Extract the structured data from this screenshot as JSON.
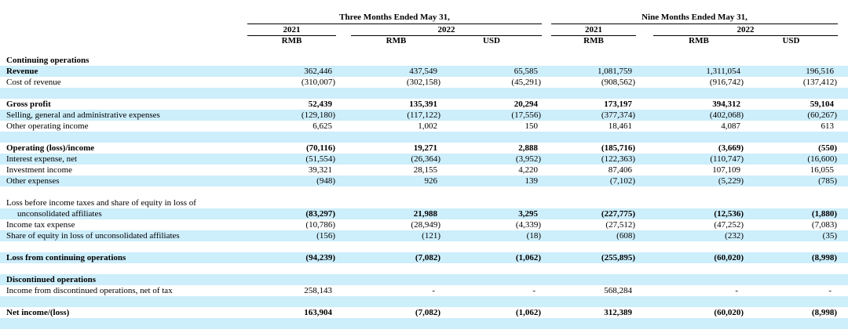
{
  "colors": {
    "stripe_blue": "#cdeefb",
    "rule_black": "#000000",
    "text_black": "#000000"
  },
  "table": {
    "header": {
      "groups": [
        {
          "label": "Three Months Ended May 31,"
        },
        {
          "label": "Nine Months Ended May 31,"
        }
      ],
      "years": [
        {
          "label": "2021"
        },
        {
          "label": "2022"
        },
        {
          "label": "2021"
        },
        {
          "label": "2022"
        }
      ],
      "currencies": [
        {
          "label": "RMB"
        },
        {
          "label": "RMB"
        },
        {
          "label": "USD"
        },
        {
          "label": "RMB"
        },
        {
          "label": "RMB"
        },
        {
          "label": "USD"
        }
      ]
    },
    "rows": [
      {
        "label": "Continuing operations",
        "bold_label": true,
        "bold_values": false,
        "indent": false,
        "bg": "white",
        "values": []
      },
      {
        "label": "Revenue",
        "bold_label": true,
        "bold_values": false,
        "indent": false,
        "bg": "blue",
        "values": [
          "362,446",
          "437,549",
          "65,585",
          "1,081,759",
          "1,311,054",
          "196,516"
        ]
      },
      {
        "label": "Cost of revenue",
        "bold_label": false,
        "bold_values": false,
        "indent": false,
        "bg": "white",
        "values": [
          "(310,007)",
          "(302,158)",
          "(45,291)",
          "(908,562)",
          "(916,742)",
          "(137,412)"
        ]
      },
      {
        "label": "",
        "bold_label": false,
        "bold_values": false,
        "indent": false,
        "bg": "blue",
        "values": []
      },
      {
        "label": "Gross profit",
        "bold_label": true,
        "bold_values": true,
        "indent": false,
        "bg": "white",
        "values": [
          "52,439",
          "135,391",
          "20,294",
          "173,197",
          "394,312",
          "59,104"
        ]
      },
      {
        "label": "Selling, general and administrative expenses",
        "bold_label": false,
        "bold_values": false,
        "indent": false,
        "bg": "blue",
        "values": [
          "(129,180)",
          "(117,122)",
          "(17,556)",
          "(377,374)",
          "(402,068)",
          "(60,267)"
        ]
      },
      {
        "label": "Other operating income",
        "bold_label": false,
        "bold_values": false,
        "indent": false,
        "bg": "white",
        "values": [
          "6,625",
          "1,002",
          "150",
          "18,461",
          "4,087",
          "613"
        ]
      },
      {
        "label": "",
        "bold_label": false,
        "bold_values": false,
        "indent": false,
        "bg": "blue",
        "values": []
      },
      {
        "label": "Operating (loss)/income",
        "bold_label": true,
        "bold_values": true,
        "indent": false,
        "bg": "white",
        "values": [
          "(70,116)",
          "19,271",
          "2,888",
          "(185,716)",
          "(3,669)",
          "(550)"
        ]
      },
      {
        "label": "Interest expense, net",
        "bold_label": false,
        "bold_values": false,
        "indent": false,
        "bg": "blue",
        "values": [
          "(51,554)",
          "(26,364)",
          "(3,952)",
          "(122,363)",
          "(110,747)",
          "(16,600)"
        ]
      },
      {
        "label": "Investment income",
        "bold_label": false,
        "bold_values": false,
        "indent": false,
        "bg": "white",
        "values": [
          "39,321",
          "28,155",
          "4,220",
          "87,406",
          "107,109",
          "16,055"
        ]
      },
      {
        "label": "Other expenses",
        "bold_label": false,
        "bold_values": false,
        "indent": false,
        "bg": "blue",
        "values": [
          "(948)",
          "926",
          "139",
          "(7,102)",
          "(5,229)",
          "(785)"
        ]
      },
      {
        "label": "",
        "bold_label": false,
        "bold_values": false,
        "indent": false,
        "bg": "white",
        "values": []
      },
      {
        "label": "Loss before income taxes and share of equity in loss of",
        "bold_label": false,
        "bold_values": false,
        "indent": false,
        "bg": "white",
        "values": []
      },
      {
        "label": "unconsolidated affiliates",
        "bold_label": false,
        "bold_values": true,
        "indent": true,
        "bg": "blue",
        "values": [
          "(83,297)",
          "21,988",
          "3,295",
          "(227,775)",
          "(12,536)",
          "(1,880)"
        ]
      },
      {
        "label": "Income tax expense",
        "bold_label": false,
        "bold_values": false,
        "indent": false,
        "bg": "white",
        "values": [
          "(10,786)",
          "(28,949)",
          "(4,339)",
          "(27,512)",
          "(47,252)",
          "(7,083)"
        ]
      },
      {
        "label": "Share of equity in loss of unconsolidated affiliates",
        "bold_label": false,
        "bold_values": false,
        "indent": false,
        "bg": "blue",
        "values": [
          "(156)",
          "(121)",
          "(18)",
          "(608)",
          "(232)",
          "(35)"
        ]
      },
      {
        "label": "",
        "bold_label": false,
        "bold_values": false,
        "indent": false,
        "bg": "white",
        "values": []
      },
      {
        "label": "Loss from continuing operations",
        "bold_label": true,
        "bold_values": true,
        "indent": false,
        "bg": "blue",
        "values": [
          "(94,239)",
          "(7,082)",
          "(1,062)",
          "(255,895)",
          "(60,020)",
          "(8,998)"
        ]
      },
      {
        "label": "",
        "bold_label": false,
        "bold_values": false,
        "indent": false,
        "bg": "white",
        "values": []
      },
      {
        "label": "Discontinued operations",
        "bold_label": true,
        "bold_values": false,
        "indent": false,
        "bg": "blue",
        "values": []
      },
      {
        "label": "Income from discontinued operations, net of tax",
        "bold_label": false,
        "bold_values": false,
        "indent": false,
        "bg": "white",
        "values": [
          "258,143",
          "-",
          "-",
          "568,284",
          "-",
          "-"
        ]
      },
      {
        "label": "",
        "bold_label": false,
        "bold_values": false,
        "indent": false,
        "bg": "blue",
        "values": []
      },
      {
        "label": "Net income/(loss)",
        "bold_label": true,
        "bold_values": true,
        "indent": false,
        "bg": "white",
        "values": [
          "163,904",
          "(7,082)",
          "(1,062)",
          "312,389",
          "(60,020)",
          "(8,998)"
        ]
      },
      {
        "label": "",
        "bold_label": false,
        "bold_values": false,
        "indent": false,
        "bg": "blue",
        "values": []
      }
    ]
  }
}
